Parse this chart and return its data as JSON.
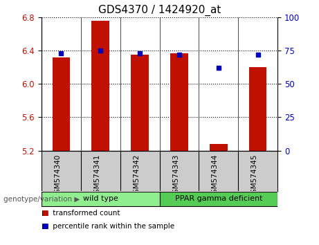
{
  "title": "GDS4370 / 1424920_at",
  "samples": [
    "GSM574340",
    "GSM574341",
    "GSM574342",
    "GSM574343",
    "GSM574344",
    "GSM574345"
  ],
  "red_values": [
    6.32,
    6.76,
    6.35,
    6.37,
    5.28,
    6.2
  ],
  "blue_values": [
    73,
    75,
    73,
    72,
    62,
    72
  ],
  "ylim_left": [
    5.2,
    6.8
  ],
  "ylim_right": [
    0,
    100
  ],
  "yticks_left": [
    5.2,
    5.6,
    6.0,
    6.4,
    6.8
  ],
  "yticks_right": [
    0,
    25,
    50,
    75,
    100
  ],
  "bar_color": "#C01000",
  "dot_color": "#0000BB",
  "group1_label": "wild type",
  "group2_label": "PPAR gamma deficient",
  "group1_indices": [
    0,
    1,
    2
  ],
  "group2_indices": [
    3,
    4,
    5
  ],
  "group1_color": "#90EE90",
  "group2_color": "#55CC55",
  "legend_red": "transformed count",
  "legend_blue": "percentile rank within the sample",
  "genotype_label": "genotype/variation",
  "ycolor_left": "#CC1100",
  "ycolor_right": "#0000CC",
  "bar_width": 0.45,
  "plot_bg": "#FFFFFF",
  "tick_area_bg": "#CCCCCC",
  "title_fontsize": 11,
  "tick_fontsize": 8.5,
  "label_fontsize": 8
}
